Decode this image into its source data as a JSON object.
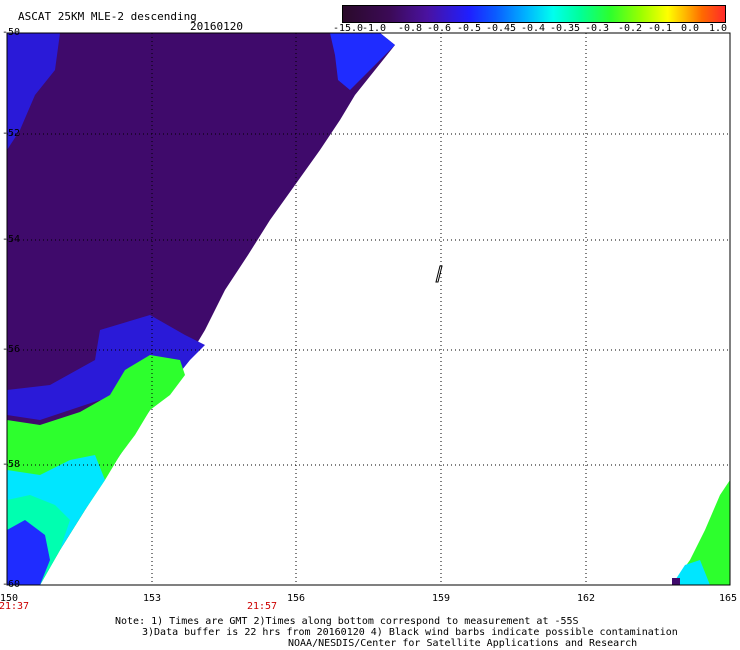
{
  "title": "ASCAT 25KM MLE-2 descending",
  "date": "20160120",
  "colorbar": {
    "labels": [
      "-15.0",
      "-1.0",
      "-0.8",
      "-0.6",
      "-0.5",
      "-0.45",
      "-0.4",
      "-0.35",
      "-0.3",
      "-0.2",
      "-0.1",
      "0.0",
      "1.0"
    ]
  },
  "map": {
    "lat_labels": [
      "-50",
      "-52",
      "-54",
      "-56",
      "-58",
      "-60"
    ],
    "lon_labels": [
      "150",
      "153",
      "156",
      "159",
      "162",
      "165"
    ],
    "times": [
      "21:37",
      "21:57"
    ],
    "colors": {
      "purple_dark": "#3f0a6b",
      "purple": "#4a12a0",
      "blue": "#1f1fff",
      "cyan": "#00e6ff",
      "green": "#2dff2d",
      "teal": "#00ffb0"
    }
  },
  "footer": {
    "line1": "Note: 1) Times are GMT 2)Times along bottom correspond to measurement at -55S",
    "line2": "3)Data buffer is 22 hrs from 20160120 4) Black wind barbs indicate possible contamination",
    "line3": "NOAA/NESDIS/Center for Satellite Applications and Research"
  }
}
